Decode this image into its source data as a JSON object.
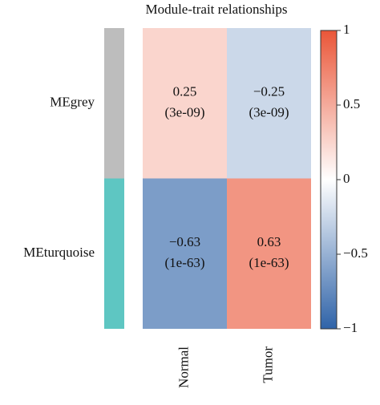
{
  "chart_data": {
    "type": "heatmap",
    "title": "Module-trait relationships",
    "rows": [
      "MEgrey",
      "MEturquoise"
    ],
    "row_colors": [
      "#bdbdbd",
      "#5ec6c2"
    ],
    "columns": [
      "Normal",
      "Tumor"
    ],
    "values": [
      [
        0.25,
        -0.25
      ],
      [
        -0.63,
        0.63
      ]
    ],
    "value_labels": [
      [
        "0.25",
        "−0.25"
      ],
      [
        "−0.63",
        "0.63"
      ]
    ],
    "p_labels": [
      [
        "(3e-09)",
        "(3e-09)"
      ],
      [
        "(1e-63)",
        "(1e-63)"
      ]
    ],
    "colorscale": [
      "#2f63a8",
      "#ffffff",
      "#ea5638"
    ],
    "clim": [
      -1,
      1
    ],
    "cticks": [
      1,
      0.5,
      0,
      {
        "value": -0.5,
        "label": "−0.5"
      },
      {
        "value": -1,
        "label": "−1"
      }
    ]
  }
}
